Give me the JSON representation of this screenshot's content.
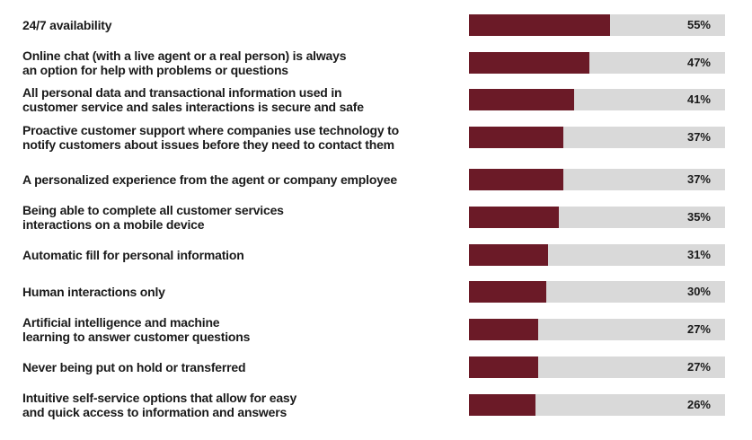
{
  "chart_data": {
    "type": "bar",
    "orientation": "horizontal",
    "xlim": [
      0,
      100
    ],
    "bar_color": "#6b1a27",
    "track_color": "#d9d9d9",
    "categories": [
      "24/7 availability",
      "Online chat (with a live agent or a real person) is always\nan option for help with problems or questions",
      "All personal data and transactional information used in\ncustomer service and sales interactions is secure and safe",
      "Proactive customer support where companies use technology to\nnotify customers about issues before they need to contact them",
      "A personalized experience from the agent or company employee",
      "Being able to complete all customer services\ninteractions on a mobile device",
      "Automatic fill for personal information",
      "Human interactions only",
      "Artificial intelligence and machine\nlearning to answer customer questions",
      "Never being put on hold or transferred",
      "Intuitive self-service options that allow for easy\nand quick access to information and answers"
    ],
    "values": [
      55,
      47,
      41,
      37,
      37,
      35,
      31,
      30,
      27,
      27,
      26
    ],
    "value_labels": [
      "55%",
      "47%",
      "41%",
      "37%",
      "37%",
      "35%",
      "31%",
      "30%",
      "27%",
      "27%",
      "26%"
    ]
  }
}
